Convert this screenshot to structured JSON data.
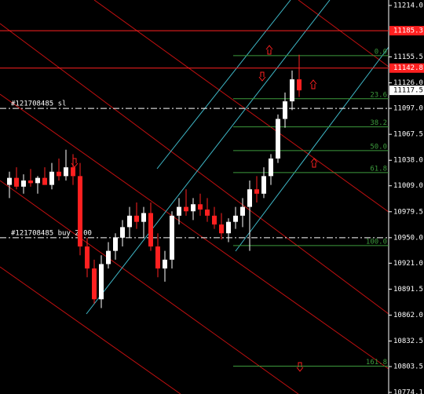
{
  "chart_data": {
    "type": "candlestick",
    "ylim": [
      10772.3,
      11220.2
    ],
    "yticks": [
      {
        "value": 11214.0,
        "label": "11214.0"
      },
      {
        "value": 11155.5,
        "label": "11155.5"
      },
      {
        "value": 11126.0,
        "label": "11126.0"
      },
      {
        "value": 11097.0,
        "label": "11097.0"
      },
      {
        "value": 11067.5,
        "label": "11067.5"
      },
      {
        "value": 11038.0,
        "label": "11038.0"
      },
      {
        "value": 11009.0,
        "label": "11009.0"
      },
      {
        "value": 10979.5,
        "label": "10979.5"
      },
      {
        "value": 10950.0,
        "label": "10950.0"
      },
      {
        "value": 10921.0,
        "label": "10921.0"
      },
      {
        "value": 10891.5,
        "label": "10891.5"
      },
      {
        "value": 10862.0,
        "label": "10862.0"
      },
      {
        "value": 10832.5,
        "label": "10832.5"
      },
      {
        "value": 10803.5,
        "label": "10803.5"
      },
      {
        "value": 10774.1,
        "label": "10774.1"
      }
    ],
    "up_color": "#ffffff",
    "down_color": "#ff2020",
    "open": [
      11010,
      11018,
      11008,
      11015,
      11012,
      11018,
      11010,
      11025,
      11020,
      11030,
      11020,
      10940,
      10915,
      10880,
      10920,
      10935,
      10950,
      10962,
      10975,
      10968,
      10978,
      10940,
      10915,
      10925,
      10975,
      10985,
      10980,
      10988,
      10982,
      10975,
      10965,
      10955,
      10968,
      10975,
      10985,
      11005,
      11000,
      11020,
      11040,
      11085,
      11105,
      11130
    ],
    "high": [
      11025,
      11030,
      11022,
      11028,
      11020,
      11030,
      11035,
      11040,
      11050,
      11045,
      11035,
      10950,
      10925,
      10930,
      10945,
      10955,
      10970,
      10985,
      10990,
      10985,
      10990,
      10955,
      10935,
      10980,
      10995,
      11005,
      10995,
      11000,
      10995,
      10985,
      10978,
      10972,
      10985,
      10995,
      11015,
      11020,
      11030,
      11045,
      11090,
      11115,
      11140,
      11158
    ],
    "low": [
      10995,
      11005,
      11000,
      11008,
      11000,
      11010,
      11005,
      11015,
      11015,
      11010,
      10930,
      10905,
      10875,
      10870,
      10915,
      10925,
      10940,
      10950,
      10960,
      10950,
      10935,
      10905,
      10900,
      10915,
      10965,
      10975,
      10970,
      10975,
      10968,
      10960,
      10948,
      10945,
      10960,
      10962,
      10935,
      10990,
      10995,
      11010,
      11035,
      11075,
      11095,
      11110
    ],
    "close": [
      11018,
      11008,
      11015,
      11012,
      11018,
      11010,
      11025,
      11020,
      11030,
      11020,
      10940,
      10915,
      10880,
      10920,
      10935,
      10950,
      10962,
      10975,
      10968,
      10978,
      10940,
      10915,
      10925,
      10975,
      10985,
      10980,
      10988,
      10982,
      10975,
      10965,
      10955,
      10968,
      10975,
      10985,
      11005,
      11000,
      11020,
      11040,
      11085,
      11105,
      11130,
      11117.5
    ],
    "price_lines": [
      {
        "value": 11185.3,
        "label": "11185.3",
        "color": "#ff2020"
      },
      {
        "value": 11142.8,
        "label": "11142.8",
        "color": "#ff2020"
      }
    ],
    "current_price": {
      "value": 11117.5,
      "label": "11117.5"
    },
    "orders": [
      {
        "value": 11097.0,
        "label": "#121708485 sl"
      },
      {
        "value": 10950.0,
        "label": "#121708485 buy 2.00"
      }
    ],
    "fib_color": "#3c9a3c",
    "fib_levels": [
      {
        "value": 11157,
        "label": "0.0"
      },
      {
        "value": 11108,
        "label": "23.6"
      },
      {
        "value": 11076,
        "label": "38.2"
      },
      {
        "value": 11049,
        "label": "50.0"
      },
      {
        "value": 11024,
        "label": "61.8"
      },
      {
        "value": 10941,
        "label": "100.0"
      },
      {
        "value": 10804,
        "label": "161.8"
      }
    ]
  }
}
